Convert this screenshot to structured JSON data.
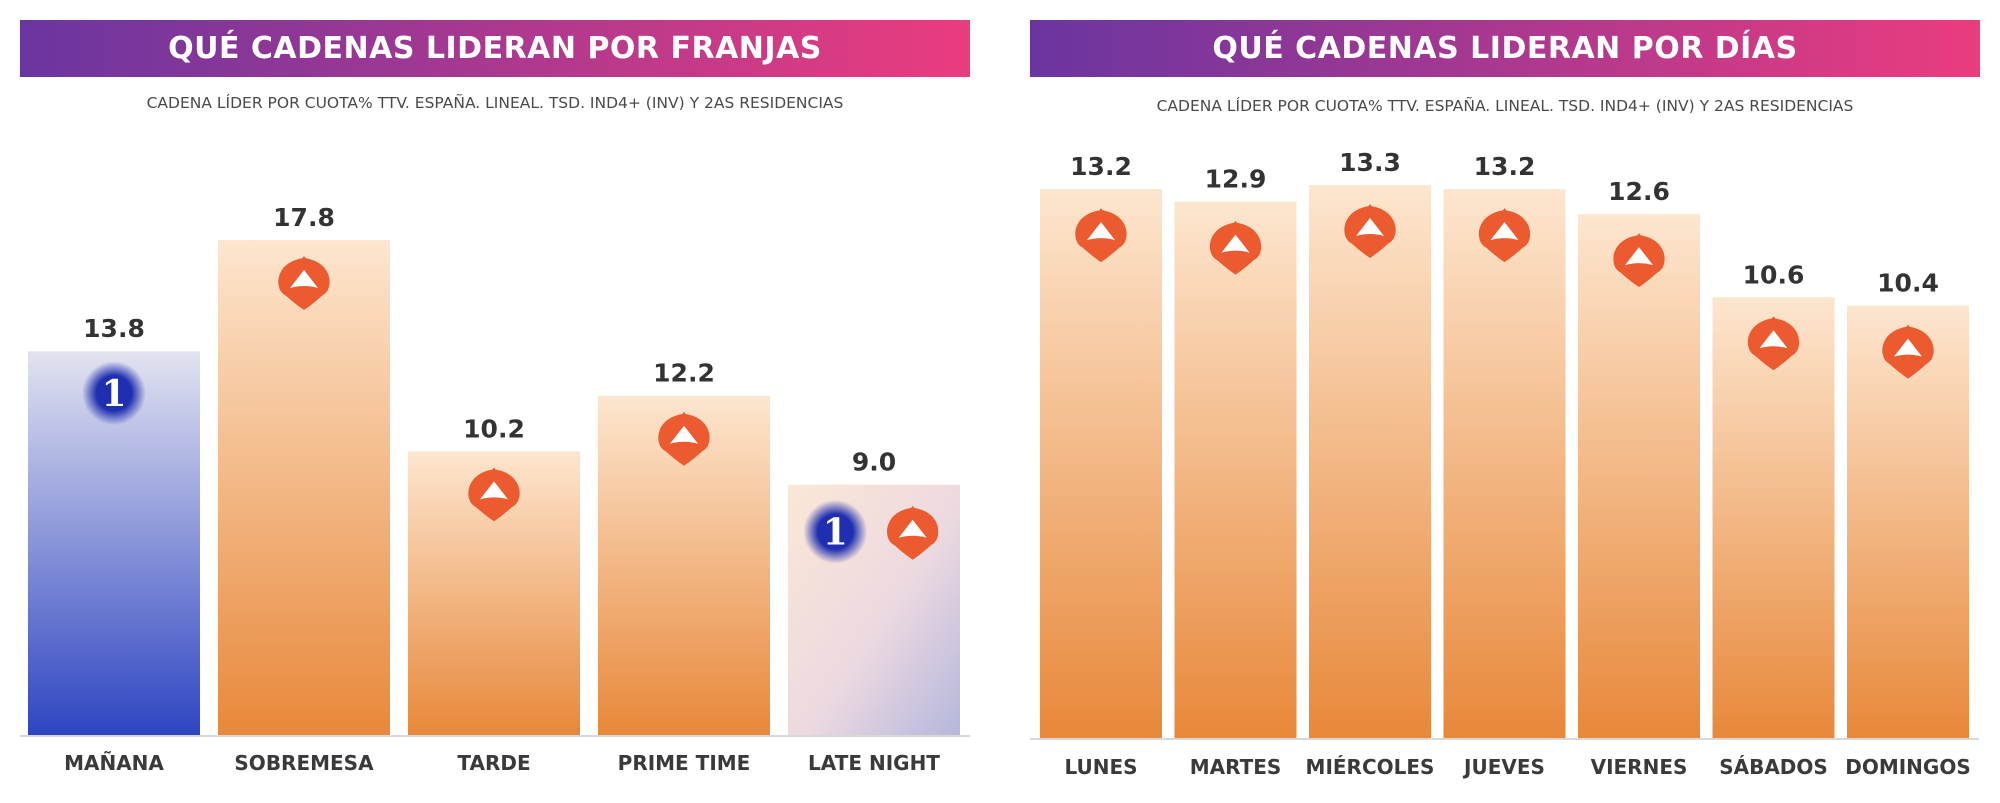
{
  "colors": {
    "banner_start": "#6a35a0",
    "banner_end": "#ea3c7e",
    "antena3_logo": "#ec5a2f",
    "tve1_logo": "#1f2fb0",
    "bar_orange_top": "#fde6cf",
    "bar_orange_bottom": "#e8883a",
    "bar_blue_top": "#e2e3f0",
    "bar_blue_bottom": "#2e45c2"
  },
  "chart_data": [
    {
      "type": "bar",
      "title": "QUÉ CADENAS LIDERAN POR FRANJAS",
      "subtitle": "CADENA LÍDER POR CUOTA% TTV. ESPAÑA. LINEAL. TSD. IND4+ (INV) Y 2AS RESIDENCIAS",
      "categories": [
        "MAÑANA",
        "SOBREMESA",
        "TARDE",
        "PRIME TIME",
        "LATE NIGHT"
      ],
      "values": [
        13.8,
        17.8,
        10.2,
        12.2,
        9.0
      ],
      "value_labels": [
        "13.8",
        "17.8",
        "10.2",
        "12.2",
        "9.0"
      ],
      "leaders": [
        [
          "tve1"
        ],
        [
          "antena3"
        ],
        [
          "antena3"
        ],
        [
          "antena3"
        ],
        [
          "tve1",
          "antena3"
        ]
      ],
      "bar_styles": [
        "blue",
        "orange",
        "orange",
        "orange",
        "mixed"
      ],
      "ylim": [
        0,
        17.8
      ],
      "grid": false,
      "logo_text_tve1": "1"
    },
    {
      "type": "bar",
      "title": "QUÉ CADENAS LIDERAN POR DÍAS",
      "subtitle": "CADENA LÍDER POR CUOTA% TTV. ESPAÑA. LINEAL. TSD. IND4+ (INV) Y 2AS RESIDENCIAS",
      "categories": [
        "LUNES",
        "MARTES",
        "MIÉRCOLES",
        "JUEVES",
        "VIERNES",
        "SÁBADOS",
        "DOMINGOS"
      ],
      "values": [
        13.2,
        12.9,
        13.3,
        13.2,
        12.6,
        10.6,
        10.4
      ],
      "value_labels": [
        "13.2",
        "12.9",
        "13.3",
        "13.2",
        "12.6",
        "10.6",
        "10.4"
      ],
      "leaders": [
        [
          "antena3"
        ],
        [
          "antena3"
        ],
        [
          "antena3"
        ],
        [
          "antena3"
        ],
        [
          "antena3"
        ],
        [
          "antena3"
        ],
        [
          "antena3"
        ]
      ],
      "bar_styles": [
        "orange",
        "orange",
        "orange",
        "orange",
        "orange",
        "orange",
        "orange"
      ],
      "ylim": [
        0,
        13.3
      ],
      "grid": false
    }
  ]
}
